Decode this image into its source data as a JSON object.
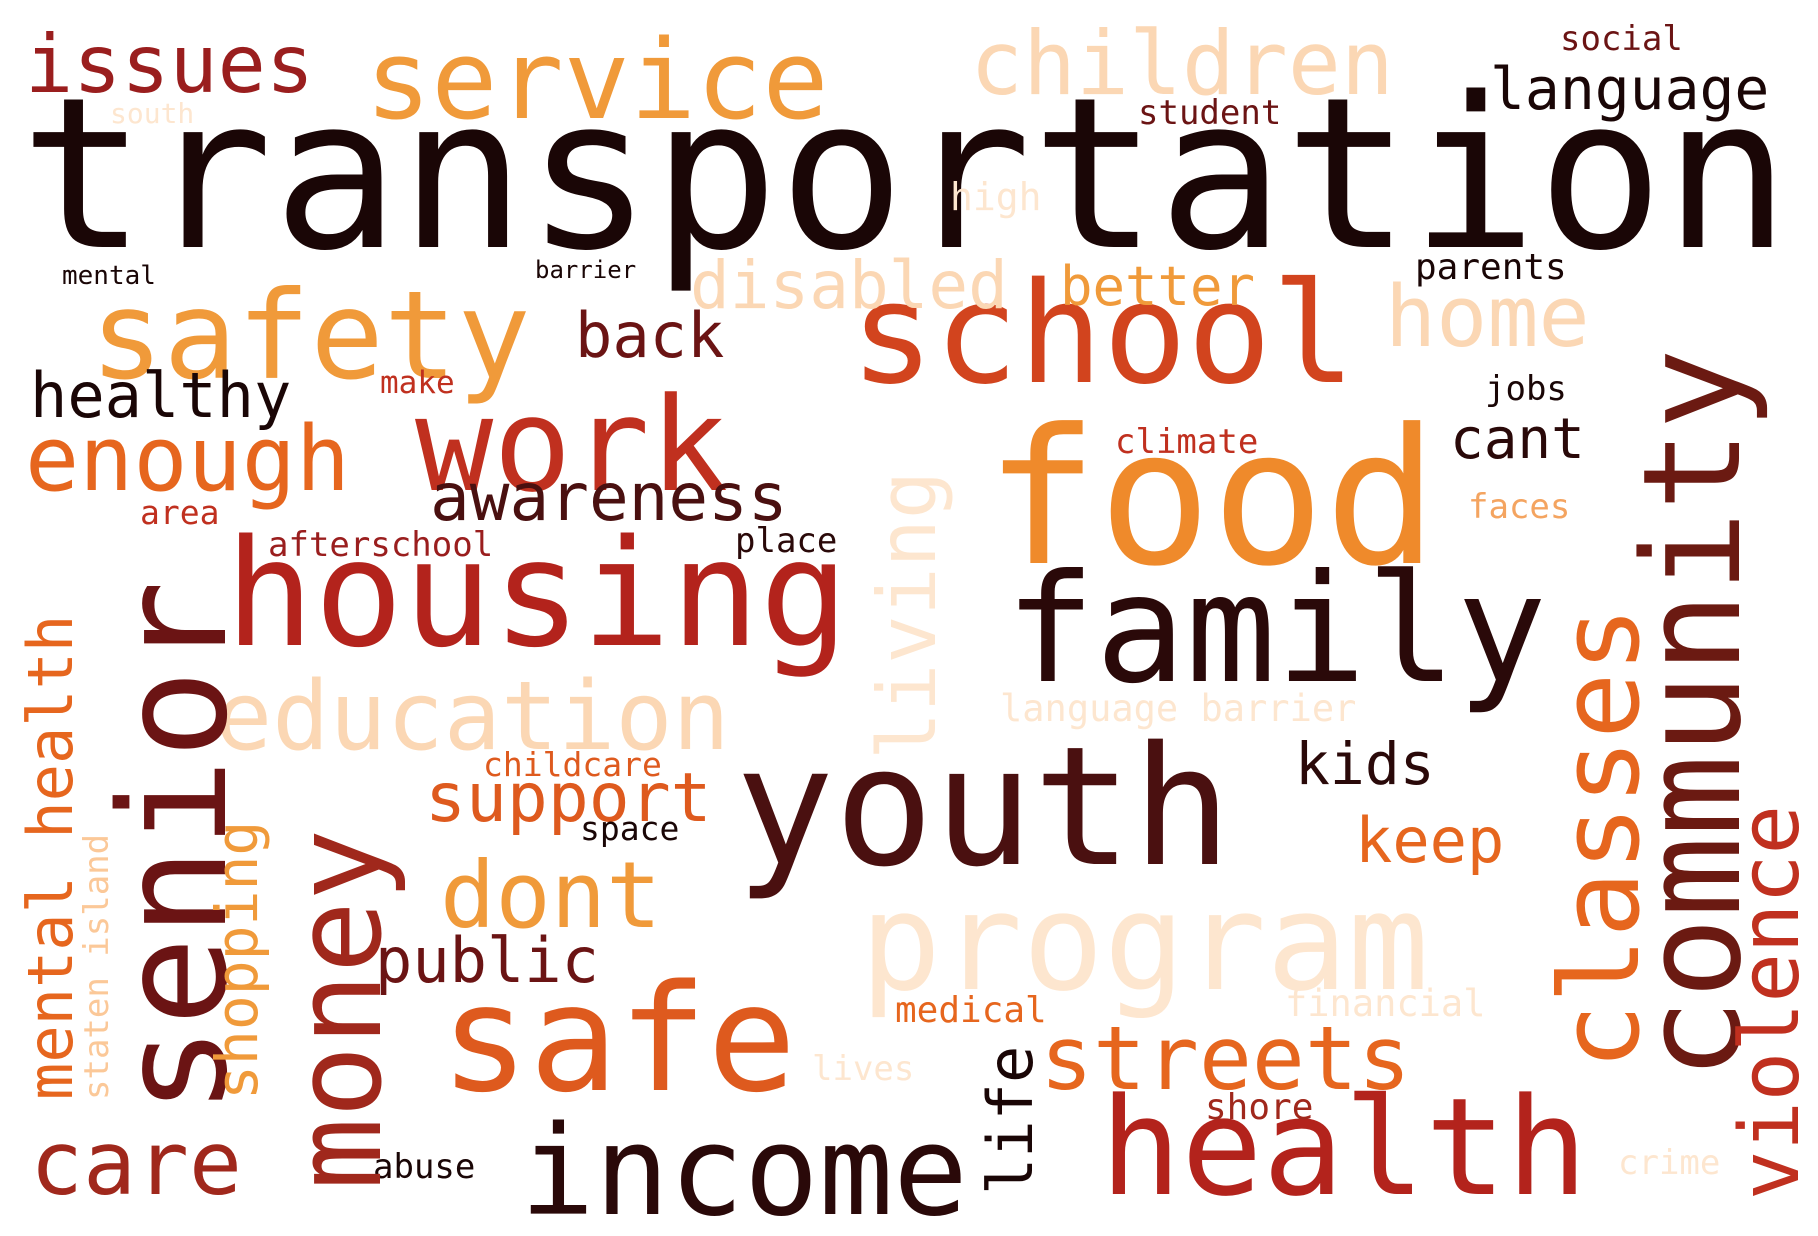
{
  "words": [
    {
      "text": "transportation",
      "color": "#1a0606"
    },
    {
      "text": "food",
      "color": "#ef8a2b"
    },
    {
      "text": "youth",
      "color": "#4a1010"
    },
    {
      "text": "family",
      "color": "#2a0909"
    },
    {
      "text": "housing",
      "color": "#b3231c"
    },
    {
      "text": "school",
      "color": "#d2441e"
    },
    {
      "text": "senior",
      "color": "#6b1414"
    },
    {
      "text": "community",
      "color": "#6b1a12"
    },
    {
      "text": "health",
      "color": "#b3231c"
    },
    {
      "text": "income",
      "color": "#2a0909"
    },
    {
      "text": "safe",
      "color": "#de5a1e"
    },
    {
      "text": "money",
      "color": "#a0281c"
    },
    {
      "text": "program",
      "color": "#fde6cf"
    },
    {
      "text": "classes",
      "color": "#e6661e"
    },
    {
      "text": "work",
      "color": "#c0301f"
    },
    {
      "text": "safety",
      "color": "#f09a3a"
    },
    {
      "text": "service",
      "color": "#f09a3a"
    },
    {
      "text": "children",
      "color": "#fbd7b4"
    },
    {
      "text": "issues",
      "color": "#9a1e1e"
    },
    {
      "text": "language",
      "color": "#1a0606"
    },
    {
      "text": "enough",
      "color": "#e6661e"
    },
    {
      "text": "education",
      "color": "#fbd7b4"
    },
    {
      "text": "violence",
      "color": "#c0301f"
    },
    {
      "text": "living",
      "color": "#fde6cf"
    },
    {
      "text": "streets",
      "color": "#e6661e"
    },
    {
      "text": "care",
      "color": "#a0281c"
    },
    {
      "text": "dont",
      "color": "#f09a3a"
    },
    {
      "text": "home",
      "color": "#fbd7b4"
    },
    {
      "text": "awareness",
      "color": "#4a1010"
    },
    {
      "text": "mental health",
      "color": "#e6661e"
    },
    {
      "text": "support",
      "color": "#de5a1e"
    },
    {
      "text": "public",
      "color": "#6b1414"
    },
    {
      "text": "disabled",
      "color": "#fbd7b4"
    },
    {
      "text": "healthy",
      "color": "#1a0606"
    },
    {
      "text": "back",
      "color": "#6b1414"
    },
    {
      "text": "kids",
      "color": "#2a0909"
    },
    {
      "text": "keep",
      "color": "#e6661e"
    },
    {
      "text": "cant",
      "color": "#2a0909"
    },
    {
      "text": "better",
      "color": "#f09a3a"
    },
    {
      "text": "shopping",
      "color": "#f09a3a"
    },
    {
      "text": "life",
      "color": "#1a0606"
    },
    {
      "text": "staten island",
      "color": "#fbc898"
    },
    {
      "text": "social",
      "color": "#6b1414"
    },
    {
      "text": "student",
      "color": "#6b1414"
    },
    {
      "text": "high",
      "color": "#fde6cf"
    },
    {
      "text": "parents",
      "color": "#1a0606"
    },
    {
      "text": "jobs",
      "color": "#1a0606"
    },
    {
      "text": "climate",
      "color": "#c0301f"
    },
    {
      "text": "faces",
      "color": "#f4a460"
    },
    {
      "text": "make",
      "color": "#c0301f"
    },
    {
      "text": "area",
      "color": "#c0301f"
    },
    {
      "text": "afterschool",
      "color": "#9a1e1e"
    },
    {
      "text": "place",
      "color": "#2a0909"
    },
    {
      "text": "language barrier",
      "color": "#fde6cf"
    },
    {
      "text": "childcare",
      "color": "#de5a1e"
    },
    {
      "text": "space",
      "color": "#1a0606"
    },
    {
      "text": "medical",
      "color": "#e6661e"
    },
    {
      "text": "financial",
      "color": "#fde6cf"
    },
    {
      "text": "lives",
      "color": "#fde6cf"
    },
    {
      "text": "shore",
      "color": "#a0281c"
    },
    {
      "text": "abuse",
      "color": "#1a0606"
    },
    {
      "text": "crime",
      "color": "#fde6cf"
    },
    {
      "text": "mental",
      "color": "#1a0606"
    },
    {
      "text": "barrier",
      "color": "#1a0606"
    },
    {
      "text": "south",
      "color": "#fde6cf"
    }
  ]
}
